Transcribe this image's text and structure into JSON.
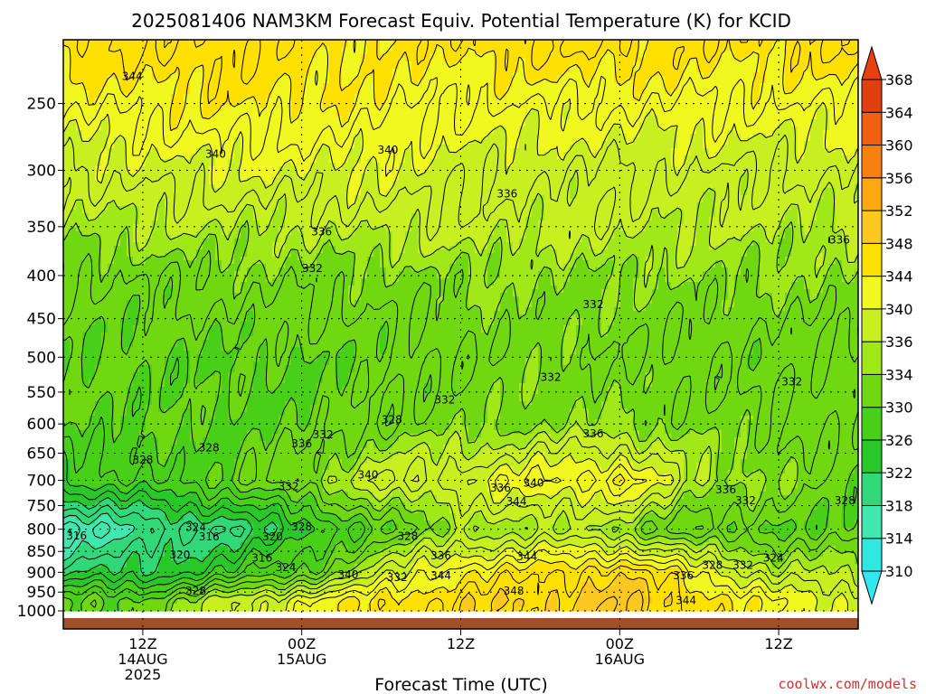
{
  "chart_data": {
    "type": "heatmap",
    "title": "2025081406  NAM3KM Forecast Equiv. Potential Temperature (K) for KCID",
    "xlabel": "Forecast Time (UTC)",
    "ylabel": "",
    "y_scale": "log-pressure",
    "y_ticks": [
      250,
      300,
      350,
      400,
      450,
      500,
      550,
      600,
      650,
      700,
      750,
      800,
      850,
      900,
      950,
      1000
    ],
    "ylim": [
      1000,
      210
    ],
    "x_ticks": [
      {
        "hours": 6,
        "lines": [
          "12Z",
          "14AUG",
          "2025"
        ]
      },
      {
        "hours": 18,
        "lines": [
          "00Z",
          "15AUG"
        ]
      },
      {
        "hours": 30,
        "lines": [
          "12Z"
        ]
      },
      {
        "hours": 42,
        "lines": [
          "00Z",
          "16AUG"
        ]
      },
      {
        "hours": 54,
        "lines": [
          "12Z"
        ]
      }
    ],
    "xlim": [
      0,
      60
    ],
    "colorbar": {
      "min": 310,
      "max": 368,
      "labels": [
        310,
        314,
        318,
        322,
        326,
        330,
        334,
        336,
        340,
        344,
        348,
        352,
        356,
        360,
        364,
        368
      ],
      "colors": [
        "#30e8e0",
        "#40e8b0",
        "#30d878",
        "#28c828",
        "#48d018",
        "#70d810",
        "#a0e818",
        "#c8f020",
        "#f0f820",
        "#ffe000",
        "#ffc820",
        "#ffa810",
        "#f88010",
        "#f06010",
        "#e04010"
      ]
    },
    "surface_color": "#a05028",
    "regime_x": [
      0,
      6,
      12,
      18,
      24,
      30,
      36,
      42,
      48,
      54,
      60
    ],
    "regime_values": {
      "975": [
        330,
        331,
        337,
        342,
        345,
        347,
        348,
        350,
        346,
        342,
        340
      ],
      "900": [
        322,
        322,
        326,
        330,
        338,
        344,
        345,
        348,
        342,
        336,
        336
      ],
      "800": [
        315,
        318,
        320,
        324,
        330,
        334,
        336,
        334,
        330,
        330,
        330
      ],
      "700": [
        326,
        328,
        330,
        334,
        338,
        340,
        342,
        344,
        336,
        334,
        330
      ],
      "600": [
        330,
        330,
        330,
        330,
        332,
        333,
        334,
        334,
        333,
        332,
        332
      ],
      "500": [
        330,
        330,
        330,
        330,
        331,
        332,
        333,
        332,
        332,
        331,
        331
      ],
      "400": [
        332,
        332,
        333,
        333,
        333,
        334,
        334,
        334,
        334,
        334,
        334
      ],
      "350": [
        335,
        336,
        336,
        336,
        337,
        337,
        337,
        337,
        336,
        336,
        336
      ],
      "300": [
        338,
        339,
        340,
        340,
        340,
        339,
        338,
        338,
        338,
        338,
        338
      ],
      "250": [
        342,
        343,
        344,
        344,
        343,
        342,
        342,
        342,
        342,
        342,
        342
      ],
      "215": [
        346,
        346,
        346,
        345,
        344,
        345,
        346,
        346,
        345,
        345,
        346
      ]
    },
    "contour_labels": [
      {
        "text": "344",
        "hours": 5.2,
        "p": 232
      },
      {
        "text": "340",
        "hours": 11.5,
        "p": 287
      },
      {
        "text": "340",
        "hours": 24.5,
        "p": 284
      },
      {
        "text": "336",
        "hours": 33.5,
        "p": 320
      },
      {
        "text": "336",
        "hours": 58.6,
        "p": 363
      },
      {
        "text": "336",
        "hours": 19.5,
        "p": 355
      },
      {
        "text": "332",
        "hours": 18.8,
        "p": 392
      },
      {
        "text": "332",
        "hours": 40.0,
        "p": 433
      },
      {
        "text": "332",
        "hours": 36.8,
        "p": 528
      },
      {
        "text": "332",
        "hours": 55.0,
        "p": 535
      },
      {
        "text": "332",
        "hours": 28.8,
        "p": 562
      },
      {
        "text": "328",
        "hours": 24.8,
        "p": 593
      },
      {
        "text": "332",
        "hours": 19.6,
        "p": 618
      },
      {
        "text": "336",
        "hours": 18.0,
        "p": 633
      },
      {
        "text": "328",
        "hours": 11.0,
        "p": 640
      },
      {
        "text": "328",
        "hours": 6.0,
        "p": 662
      },
      {
        "text": "336",
        "hours": 40.0,
        "p": 616
      },
      {
        "text": "340",
        "hours": 23.0,
        "p": 690
      },
      {
        "text": "332",
        "hours": 17.0,
        "p": 712
      },
      {
        "text": "336",
        "hours": 33.0,
        "p": 715
      },
      {
        "text": "340",
        "hours": 35.5,
        "p": 705
      },
      {
        "text": "344",
        "hours": 34.2,
        "p": 742
      },
      {
        "text": "336",
        "hours": 50.0,
        "p": 718
      },
      {
        "text": "332",
        "hours": 51.5,
        "p": 740
      },
      {
        "text": "328",
        "hours": 59.0,
        "p": 740
      },
      {
        "text": "324",
        "hours": 10.0,
        "p": 796
      },
      {
        "text": "328",
        "hours": 18.0,
        "p": 795
      },
      {
        "text": "316",
        "hours": 1.0,
        "p": 815
      },
      {
        "text": "316",
        "hours": 11.0,
        "p": 817
      },
      {
        "text": "320",
        "hours": 15.8,
        "p": 817
      },
      {
        "text": "328",
        "hours": 26.0,
        "p": 816
      },
      {
        "text": "320",
        "hours": 8.8,
        "p": 858
      },
      {
        "text": "316",
        "hours": 15.0,
        "p": 866
      },
      {
        "text": "324",
        "hours": 16.8,
        "p": 888
      },
      {
        "text": "336",
        "hours": 28.5,
        "p": 860
      },
      {
        "text": "344",
        "hours": 35.0,
        "p": 862
      },
      {
        "text": "328",
        "hours": 49.0,
        "p": 883
      },
      {
        "text": "332",
        "hours": 51.3,
        "p": 883
      },
      {
        "text": "324",
        "hours": 53.6,
        "p": 865
      },
      {
        "text": "340",
        "hours": 21.5,
        "p": 906
      },
      {
        "text": "332",
        "hours": 25.2,
        "p": 913
      },
      {
        "text": "344",
        "hours": 28.5,
        "p": 908
      },
      {
        "text": "336",
        "hours": 46.8,
        "p": 908
      },
      {
        "text": "348",
        "hours": 34.0,
        "p": 947
      },
      {
        "text": "344",
        "hours": 47.0,
        "p": 972
      },
      {
        "text": "328",
        "hours": 10.0,
        "p": 947
      }
    ]
  },
  "watermark": "coolwx.com/models"
}
